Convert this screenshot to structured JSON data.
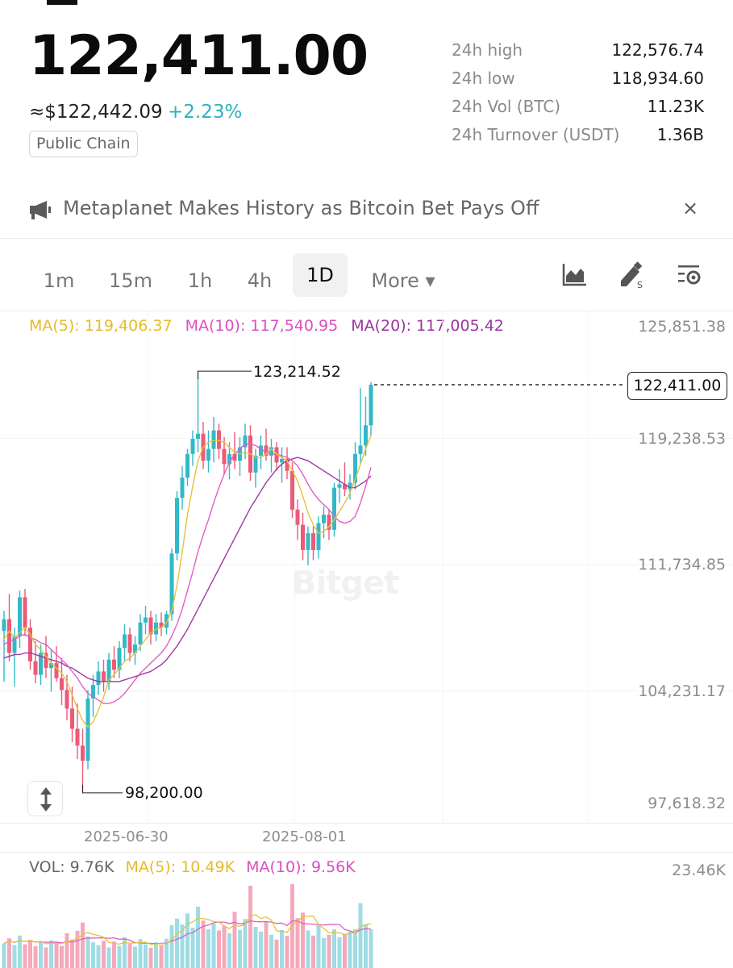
{
  "ticker": {
    "last_price": "122,411.00",
    "usd_price": "≈$122,442.09",
    "change_pct": "+2.23%",
    "tag": "Public Chain"
  },
  "stats": [
    {
      "label": "24h high",
      "value": "122,576.74"
    },
    {
      "label": "24h low",
      "value": "118,934.60"
    },
    {
      "label": "24h Vol (BTC)",
      "value": "11.23K"
    },
    {
      "label": "24h Turnover (USDT)",
      "value": "1.36B"
    }
  ],
  "news": {
    "headline": "Metaplanet Makes History as Bitcoin Bet Pays Off",
    "close": "×",
    "icon": "megaphone-icon"
  },
  "timeframes": {
    "items": [
      "1m",
      "15m",
      "1h",
      "4h",
      "1D",
      "More ▾"
    ],
    "active": "1D"
  },
  "toolbar_icons": [
    "chart-type-icon",
    "draw-tool-icon",
    "indicator-settings-icon"
  ],
  "ma_legend": {
    "ma5": "MA(5): 119,406.37",
    "ma10": "MA(10): 117,540.95",
    "ma20": "MA(20): 117,005.42"
  },
  "price_axis": [
    "125,851.38",
    "119,238.53",
    "111,734.85",
    "104,231.17",
    "97,618.32"
  ],
  "current_price_tag": "122,411.00",
  "annotations": {
    "high": "123,214.52",
    "low": "98,200.00"
  },
  "date_axis": [
    "2025-06-30",
    "2025-08-01"
  ],
  "watermark": "Bitget",
  "volume_legend": {
    "vol": "VOL: 9.76K",
    "ma5": "MA(5): 10.49K",
    "ma10": "MA(10): 9.56K",
    "max": "23.46K"
  },
  "colors": {
    "up": "#33b8c8",
    "down": "#ec5a77",
    "ma5": "#e7c13d",
    "ma10": "#e05fc5",
    "ma20": "#9d3aa3",
    "change": "#26b3bf"
  },
  "chart_data": {
    "type": "candlestick",
    "y_range": [
      97618.32,
      125851.38
    ],
    "candles": [
      {
        "o": 107800,
        "h": 109000,
        "l": 104800,
        "c": 108500
      },
      {
        "o": 108500,
        "h": 110000,
        "l": 106000,
        "c": 106500
      },
      {
        "o": 106500,
        "h": 108000,
        "l": 104500,
        "c": 107500
      },
      {
        "o": 107500,
        "h": 110200,
        "l": 106800,
        "c": 109800
      },
      {
        "o": 109800,
        "h": 110300,
        "l": 107500,
        "c": 108000
      },
      {
        "o": 108000,
        "h": 108500,
        "l": 105500,
        "c": 106000
      },
      {
        "o": 106000,
        "h": 107200,
        "l": 104700,
        "c": 105200
      },
      {
        "o": 105200,
        "h": 107000,
        "l": 104600,
        "c": 106500
      },
      {
        "o": 106500,
        "h": 107500,
        "l": 105000,
        "c": 105600
      },
      {
        "o": 105600,
        "h": 106700,
        "l": 104200,
        "c": 105900
      },
      {
        "o": 105900,
        "h": 106900,
        "l": 104800,
        "c": 105000
      },
      {
        "o": 105000,
        "h": 106200,
        "l": 103400,
        "c": 104300
      },
      {
        "o": 104300,
        "h": 105200,
        "l": 102500,
        "c": 103200
      },
      {
        "o": 103200,
        "h": 104500,
        "l": 101200,
        "c": 102000
      },
      {
        "o": 102000,
        "h": 103500,
        "l": 100200,
        "c": 101000
      },
      {
        "o": 101000,
        "h": 102000,
        "l": 98200,
        "c": 100100
      },
      {
        "o": 100100,
        "h": 104300,
        "l": 99600,
        "c": 103800
      },
      {
        "o": 103800,
        "h": 105200,
        "l": 102700,
        "c": 104600
      },
      {
        "o": 104600,
        "h": 106000,
        "l": 104000,
        "c": 105400
      },
      {
        "o": 105400,
        "h": 106100,
        "l": 104200,
        "c": 104800
      },
      {
        "o": 104800,
        "h": 106500,
        "l": 104300,
        "c": 106100
      },
      {
        "o": 106100,
        "h": 106900,
        "l": 105000,
        "c": 105500
      },
      {
        "o": 105500,
        "h": 107200,
        "l": 105000,
        "c": 106800
      },
      {
        "o": 106800,
        "h": 108200,
        "l": 106000,
        "c": 107600
      },
      {
        "o": 107600,
        "h": 108000,
        "l": 106000,
        "c": 106500
      },
      {
        "o": 106500,
        "h": 107500,
        "l": 105800,
        "c": 107000
      },
      {
        "o": 107000,
        "h": 108800,
        "l": 106600,
        "c": 108300
      },
      {
        "o": 108300,
        "h": 109300,
        "l": 107600,
        "c": 108600
      },
      {
        "o": 108600,
        "h": 109000,
        "l": 107000,
        "c": 107600
      },
      {
        "o": 107600,
        "h": 108800,
        "l": 107200,
        "c": 108300
      },
      {
        "o": 108300,
        "h": 108900,
        "l": 107500,
        "c": 108000
      },
      {
        "o": 108000,
        "h": 109000,
        "l": 107600,
        "c": 108800
      },
      {
        "o": 108800,
        "h": 112700,
        "l": 108400,
        "c": 112400
      },
      {
        "o": 112400,
        "h": 116100,
        "l": 112000,
        "c": 115700
      },
      {
        "o": 115700,
        "h": 117600,
        "l": 115000,
        "c": 116900
      },
      {
        "o": 116900,
        "h": 118600,
        "l": 116400,
        "c": 118300
      },
      {
        "o": 118300,
        "h": 119700,
        "l": 117600,
        "c": 119200
      },
      {
        "o": 119200,
        "h": 123214.52,
        "l": 118400,
        "c": 119500
      },
      {
        "o": 119500,
        "h": 120200,
        "l": 117400,
        "c": 117900
      },
      {
        "o": 117900,
        "h": 119700,
        "l": 117200,
        "c": 118600
      },
      {
        "o": 118600,
        "h": 120500,
        "l": 117800,
        "c": 119700
      },
      {
        "o": 119700,
        "h": 120100,
        "l": 118000,
        "c": 118600
      },
      {
        "o": 118600,
        "h": 119300,
        "l": 117100,
        "c": 117700
      },
      {
        "o": 117700,
        "h": 119000,
        "l": 116800,
        "c": 118300
      },
      {
        "o": 118300,
        "h": 119600,
        "l": 117400,
        "c": 117900
      },
      {
        "o": 117900,
        "h": 119300,
        "l": 117000,
        "c": 118700
      },
      {
        "o": 118700,
        "h": 120100,
        "l": 118000,
        "c": 119400
      },
      {
        "o": 119400,
        "h": 120000,
        "l": 116700,
        "c": 117200
      },
      {
        "o": 117200,
        "h": 118600,
        "l": 116300,
        "c": 118200
      },
      {
        "o": 118200,
        "h": 119400,
        "l": 117400,
        "c": 118800
      },
      {
        "o": 118800,
        "h": 119800,
        "l": 117900,
        "c": 118200
      },
      {
        "o": 118200,
        "h": 119200,
        "l": 117200,
        "c": 118700
      },
      {
        "o": 118700,
        "h": 119000,
        "l": 117300,
        "c": 117800
      },
      {
        "o": 117800,
        "h": 118700,
        "l": 116600,
        "c": 118000
      },
      {
        "o": 118000,
        "h": 118700,
        "l": 116800,
        "c": 117300
      },
      {
        "o": 117300,
        "h": 117800,
        "l": 114500,
        "c": 115000
      },
      {
        "o": 115000,
        "h": 115600,
        "l": 113200,
        "c": 114100
      },
      {
        "o": 114100,
        "h": 114800,
        "l": 112000,
        "c": 112600
      },
      {
        "o": 112600,
        "h": 114000,
        "l": 111700,
        "c": 113600
      },
      {
        "o": 113600,
        "h": 114000,
        "l": 112000,
        "c": 112600
      },
      {
        "o": 112600,
        "h": 114600,
        "l": 112100,
        "c": 114200
      },
      {
        "o": 114200,
        "h": 115200,
        "l": 113300,
        "c": 114700
      },
      {
        "o": 114700,
        "h": 115000,
        "l": 113200,
        "c": 113800
      },
      {
        "o": 113800,
        "h": 116600,
        "l": 113400,
        "c": 116300
      },
      {
        "o": 116300,
        "h": 117400,
        "l": 115400,
        "c": 116500
      },
      {
        "o": 116500,
        "h": 117800,
        "l": 115800,
        "c": 116200
      },
      {
        "o": 116200,
        "h": 117100,
        "l": 115600,
        "c": 116600
      },
      {
        "o": 116600,
        "h": 119000,
        "l": 116200,
        "c": 118300
      },
      {
        "o": 118300,
        "h": 122200,
        "l": 117700,
        "c": 118800
      },
      {
        "o": 118800,
        "h": 121700,
        "l": 118200,
        "c": 120000
      },
      {
        "o": 120000,
        "h": 122576.74,
        "l": 119400,
        "c": 122411
      }
    ],
    "ma5": [
      107300,
      107800,
      107400,
      107700,
      108000,
      107600,
      107000,
      106700,
      106300,
      105900,
      105600,
      105300,
      104800,
      104000,
      103200,
      102500,
      102100,
      102400,
      103100,
      103900,
      104900,
      105200,
      105600,
      106000,
      106200,
      106500,
      106900,
      107300,
      107700,
      107900,
      108000,
      108300,
      109000,
      110500,
      112500,
      114700,
      116400,
      117900,
      118700,
      119000,
      119100,
      119100,
      119000,
      118700,
      118400,
      118300,
      118400,
      118300,
      118100,
      118100,
      118300,
      118600,
      118300,
      118100,
      117900,
      117300,
      116700,
      115800,
      114800,
      114100,
      113600,
      113700,
      114000,
      114400,
      114900,
      115400,
      116000,
      116800,
      117700,
      118600,
      119400
    ],
    "ma10": [
      107000,
      107200,
      107300,
      107500,
      107600,
      107400,
      107300,
      107100,
      107000,
      106700,
      106400,
      106100,
      105800,
      105400,
      105000,
      104500,
      104100,
      103900,
      103700,
      103500,
      103500,
      103600,
      103800,
      104100,
      104500,
      104900,
      105300,
      105600,
      105900,
      106200,
      106500,
      106900,
      107500,
      108200,
      109100,
      110200,
      111300,
      112500,
      113500,
      114400,
      115400,
      116300,
      117100,
      117800,
      118300,
      118600,
      118900,
      118900,
      118800,
      118600,
      118400,
      118300,
      118300,
      118200,
      118100,
      117900,
      117600,
      117100,
      116500,
      116000,
      115600,
      115300,
      115000,
      114600,
      114300,
      114200,
      114300,
      114600,
      115400,
      116400,
      117500
    ],
    "ma20": [
      106200,
      106300,
      106400,
      106400,
      106500,
      106500,
      106400,
      106300,
      106200,
      106100,
      106000,
      105900,
      105700,
      105600,
      105400,
      105200,
      105000,
      104900,
      104800,
      104800,
      104800,
      104800,
      104800,
      104900,
      105000,
      105100,
      105200,
      105300,
      105400,
      105600,
      105800,
      106100,
      106500,
      106900,
      107400,
      107900,
      108500,
      109100,
      109700,
      110300,
      110900,
      111500,
      112100,
      112700,
      113300,
      113900,
      114500,
      115100,
      115600,
      116100,
      116600,
      117000,
      117400,
      117700,
      117900,
      118000,
      118100,
      118000,
      117900,
      117700,
      117500,
      117300,
      117100,
      116900,
      116700,
      116500,
      116300,
      116300,
      116500,
      116700,
      117005
    ],
    "volume_max": 23460,
    "volume": [
      6.2,
      7.5,
      5.8,
      8.2,
      6.0,
      7.1,
      5.5,
      6.8,
      5.2,
      7.0,
      6.4,
      5.6,
      8.8,
      7.2,
      9.4,
      11.5,
      8.0,
      6.5,
      5.8,
      6.9,
      5.2,
      6.7,
      5.6,
      7.8,
      6.1,
      5.4,
      7.3,
      6.0,
      5.1,
      6.5,
      5.8,
      7.4,
      10.8,
      12.5,
      11.0,
      13.8,
      10.2,
      15.5,
      12.0,
      9.8,
      11.2,
      9.5,
      10.6,
      8.8,
      14.2,
      9.6,
      12.4,
      20.8,
      10.4,
      9.2,
      11.8,
      8.4,
      7.2,
      9.6,
      8.1,
      21.2,
      12.6,
      14.0,
      9.5,
      8.2,
      10.8,
      7.6,
      8.4,
      9.8,
      7.8,
      8.6,
      9.2,
      9.8,
      16.4,
      11.0,
      9.76
    ]
  }
}
